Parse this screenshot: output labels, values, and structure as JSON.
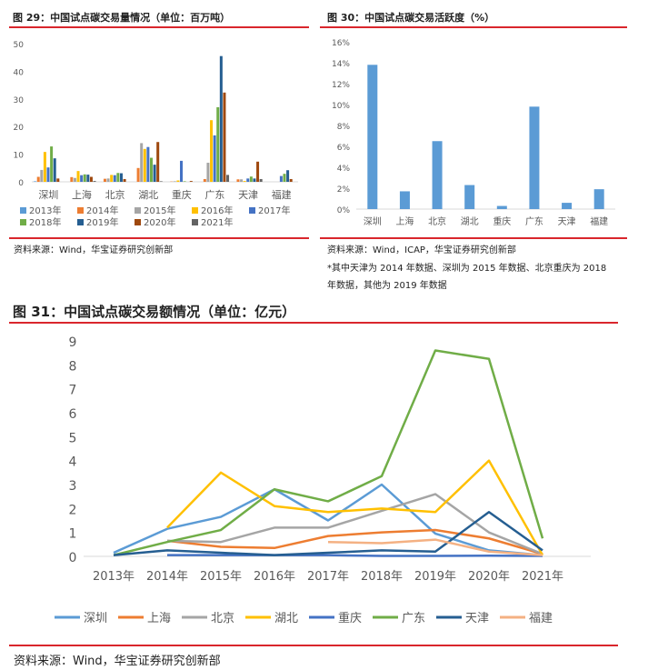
{
  "fig29": {
    "title": "图 29：中国试点碳交易量情况（单位：百万吨）",
    "source": "资料来源：Wind，华宝证券研究创新部"
  },
  "fig30": {
    "title": "图 30：中国试点碳交易活跃度（%）",
    "source": "资料来源：Wind，ICAP，华宝证券研究创新部",
    "note1": "*其中天津为 2014 年数据、深圳为 2015 年数据、北京重庆为 2018",
    "note2": "年数据，其他为 2019 年数据"
  },
  "fig31": {
    "title": "图 31：中国试点碳交易额情况（单位：亿元）",
    "source": "资料来源：Wind，华宝证券研究创新部"
  },
  "chart_data": [
    {
      "type": "bar",
      "ylim": [
        0,
        50
      ],
      "yticks": [
        0,
        10,
        20,
        30,
        40,
        50
      ],
      "legend": "bottom",
      "categories": [
        "深圳",
        "上海",
        "北京",
        "湖北",
        "重庆",
        "广东",
        "天津",
        "福建"
      ],
      "series": [
        {
          "name": "2013年",
          "color": "#5B9BD5",
          "values": [
            0.2,
            0,
            0,
            0,
            0,
            0,
            0,
            0
          ]
        },
        {
          "name": "2014年",
          "color": "#ED7D31",
          "values": [
            1.8,
            1.7,
            1.1,
            5.0,
            0.1,
            1.0,
            0.9,
            0
          ]
        },
        {
          "name": "2015年",
          "color": "#A5A5A5",
          "values": [
            4.3,
            1.4,
            1.2,
            14.0,
            0.2,
            6.9,
            0.9,
            0
          ]
        },
        {
          "name": "2016年",
          "color": "#FFC000",
          "values": [
            10.8,
            3.9,
            2.5,
            11.9,
            0.5,
            22.3,
            0.3,
            0
          ]
        },
        {
          "name": "2017年",
          "color": "#4472C4",
          "values": [
            5.2,
            2.4,
            2.4,
            12.6,
            7.6,
            16.8,
            1.2,
            2.1
          ]
        },
        {
          "name": "2018年",
          "color": "#70AD47",
          "values": [
            12.8,
            2.7,
            3.2,
            8.7,
            0.2,
            27.0,
            1.9,
            2.9
          ]
        },
        {
          "name": "2019年",
          "color": "#255E91",
          "values": [
            8.5,
            2.6,
            3.1,
            6.2,
            0,
            45.5,
            1.2,
            4.2
          ]
        },
        {
          "name": "2020年",
          "color": "#9E480E",
          "values": [
            1.2,
            1.8,
            1.0,
            14.4,
            0.3,
            32.3,
            7.3,
            1.0
          ]
        },
        {
          "name": "2021年",
          "color": "#636363",
          "values": [
            0,
            0.3,
            0,
            0.2,
            0,
            2.5,
            1.0,
            0
          ]
        }
      ]
    },
    {
      "type": "bar",
      "ylim": [
        0,
        16
      ],
      "yticks": [
        "0%",
        "2%",
        "4%",
        "6%",
        "8%",
        "10%",
        "12%",
        "14%",
        "16%"
      ],
      "color": "#5B9BD5",
      "categories": [
        "深圳",
        "上海",
        "北京",
        "湖北",
        "重庆",
        "广东",
        "天津",
        "福建"
      ],
      "values": [
        13.8,
        1.7,
        6.5,
        2.3,
        0.3,
        9.8,
        0.6,
        1.9
      ]
    },
    {
      "type": "line",
      "ylim": [
        0,
        9
      ],
      "yticks": [
        0,
        1,
        2,
        3,
        4,
        5,
        6,
        7,
        8,
        9
      ],
      "legend": "bottom",
      "categories": [
        "2013年",
        "2014年",
        "2015年",
        "2016年",
        "2017年",
        "2018年",
        "2019年",
        "2020年",
        "2021年"
      ],
      "series": [
        {
          "name": "深圳",
          "color": "#5B9BD5",
          "values": [
            0.15,
            1.15,
            1.65,
            2.8,
            1.5,
            3.0,
            0.95,
            0.25,
            0.05
          ]
        },
        {
          "name": "上海",
          "color": "#ED7D31",
          "values": [
            null,
            0.65,
            0.4,
            0.35,
            0.85,
            1.0,
            1.1,
            0.75,
            0.1
          ]
        },
        {
          "name": "北京",
          "color": "#A5A5A5",
          "values": [
            null,
            0.65,
            0.6,
            1.2,
            1.2,
            1.9,
            2.6,
            1.0,
            0.1
          ]
        },
        {
          "name": "湖北",
          "color": "#FFC000",
          "values": [
            null,
            1.2,
            3.5,
            2.1,
            1.85,
            2.0,
            1.85,
            4.0,
            0.05
          ]
        },
        {
          "name": "重庆",
          "color": "#4472C4",
          "values": [
            null,
            0.05,
            0.05,
            0.05,
            0.05,
            0.02,
            0.02,
            0.03,
            0.02
          ]
        },
        {
          "name": "广东",
          "color": "#70AD47",
          "values": [
            0.05,
            0.6,
            1.1,
            2.8,
            2.3,
            3.35,
            8.6,
            8.25,
            0.75
          ]
        },
        {
          "name": "天津",
          "color": "#255E91",
          "values": [
            0.05,
            0.25,
            0.15,
            0.05,
            0.15,
            0.25,
            0.2,
            1.85,
            0.25
          ]
        },
        {
          "name": "福建",
          "color": "#F4B183",
          "values": [
            null,
            null,
            null,
            null,
            0.6,
            0.55,
            0.7,
            0.2,
            0.05
          ]
        }
      ]
    }
  ]
}
